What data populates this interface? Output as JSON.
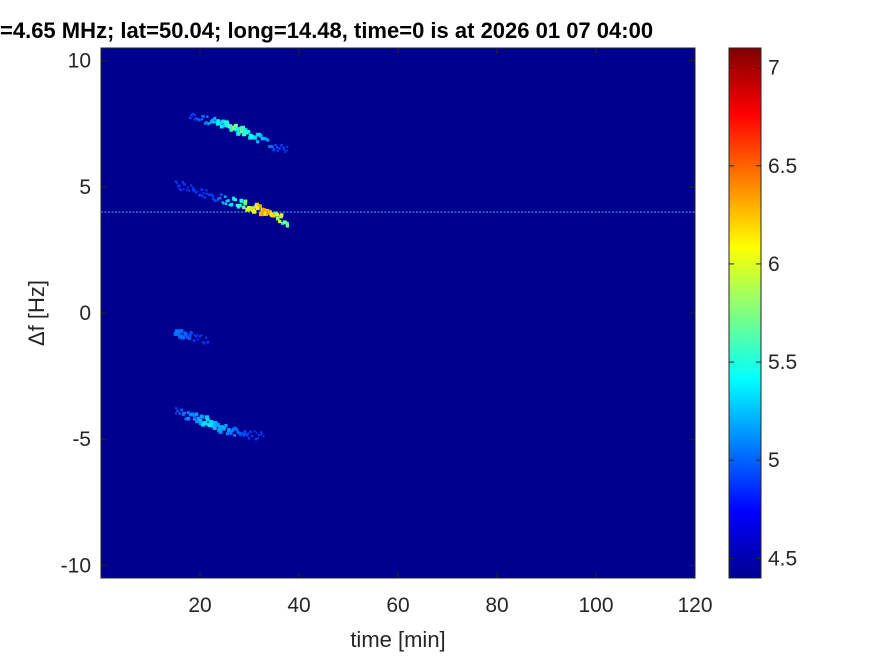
{
  "chart_data": {
    "type": "heatmap",
    "title": "=4.65 MHz;  lat=50.04; long=14.48, time=0 is at 2026 01 07 04:00",
    "xlabel": "time [min]",
    "ylabel": "Δf [Hz]",
    "xlim": [
      0,
      120
    ],
    "ylim": [
      -10.5,
      10.5
    ],
    "xticks": [
      20,
      40,
      60,
      80,
      100,
      120
    ],
    "yticks": [
      10,
      5,
      0,
      -5,
      -10
    ],
    "colorbar": {
      "range": [
        4.4,
        7.1
      ],
      "ticks": [
        7,
        6.5,
        6,
        5.5,
        5,
        4.5
      ],
      "colormap": "jet"
    },
    "background_value": 4.42,
    "colors": {
      "background": "#00008f",
      "carrier_line": "#4f8fff"
    },
    "features": [
      {
        "kind": "constant_line",
        "y": 4.0,
        "x_range": [
          0,
          120
        ],
        "value": 5.05
      },
      {
        "kind": "streak",
        "points": [
          [
            18,
            7.8
          ],
          [
            22,
            7.6
          ],
          [
            26,
            7.4
          ],
          [
            30,
            7.1
          ],
          [
            34,
            6.7
          ],
          [
            38,
            6.4
          ]
        ],
        "peak": [
          28,
          7.5
        ],
        "peak_value": 5.9
      },
      {
        "kind": "streak",
        "points": [
          [
            15,
            5.1
          ],
          [
            20,
            4.8
          ],
          [
            25,
            4.5
          ],
          [
            29,
            4.3
          ],
          [
            33,
            4.0
          ],
          [
            38,
            3.6
          ]
        ],
        "peak": [
          33,
          4.0
        ],
        "peak_value": 6.6
      },
      {
        "kind": "streak",
        "points": [
          [
            15,
            -0.8
          ],
          [
            18,
            -0.9
          ],
          [
            22,
            -1.1
          ]
        ],
        "peak": [
          16,
          -0.8
        ],
        "peak_value": 5.1
      },
      {
        "kind": "streak",
        "points": [
          [
            15,
            -3.9
          ],
          [
            20,
            -4.2
          ],
          [
            25,
            -4.6
          ],
          [
            29,
            -4.8
          ],
          [
            33,
            -4.9
          ]
        ],
        "peak": [
          22,
          -4.4
        ],
        "peak_value": 5.4
      }
    ]
  }
}
